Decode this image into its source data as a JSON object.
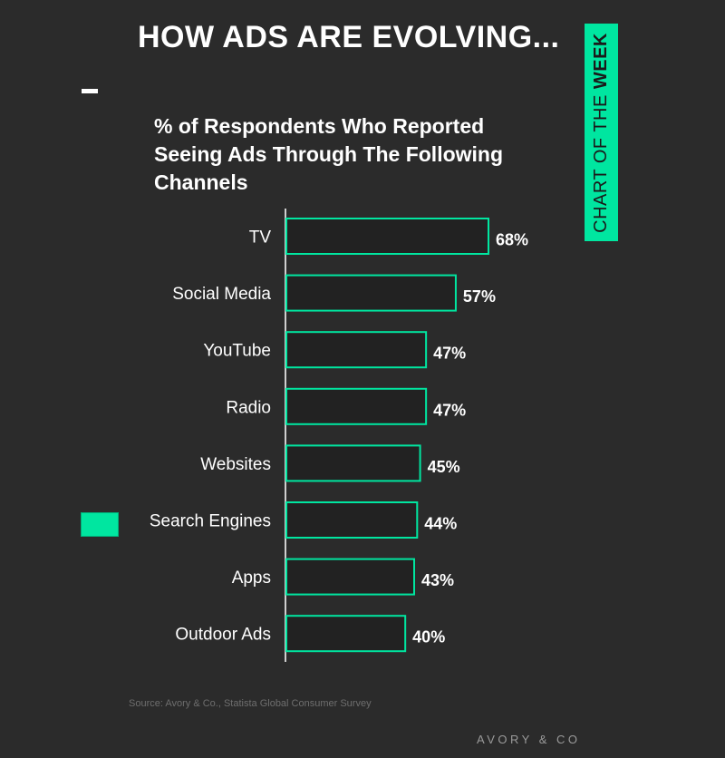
{
  "title": "HOW ADS ARE EVOLVING...",
  "badge": {
    "prefix": "CHART OF THE ",
    "bold": "WEEK"
  },
  "source": "Source: Avory & Co., Statista Global Consumer Survey",
  "brand": "AVORY & CO",
  "colors": {
    "background": "#2b2b2b",
    "accent": "#00e6a0",
    "bar_fill": "#222222",
    "text": "#ffffff"
  },
  "chart_data": {
    "type": "bar",
    "orientation": "horizontal",
    "title": "% of Respondents Who Reported Seeing Ads Through The Following Channels",
    "categories": [
      "TV",
      "Social Media",
      "YouTube",
      "Radio",
      "Websites",
      "Search Engines",
      "Apps",
      "Outdoor Ads"
    ],
    "values": [
      68,
      57,
      47,
      47,
      45,
      44,
      43,
      40
    ],
    "value_labels": [
      "68%",
      "57%",
      "47%",
      "47%",
      "45%",
      "44%",
      "43%",
      "40%"
    ],
    "unit": "%",
    "xlim": [
      0,
      100
    ],
    "grid": false,
    "legend": "left"
  }
}
